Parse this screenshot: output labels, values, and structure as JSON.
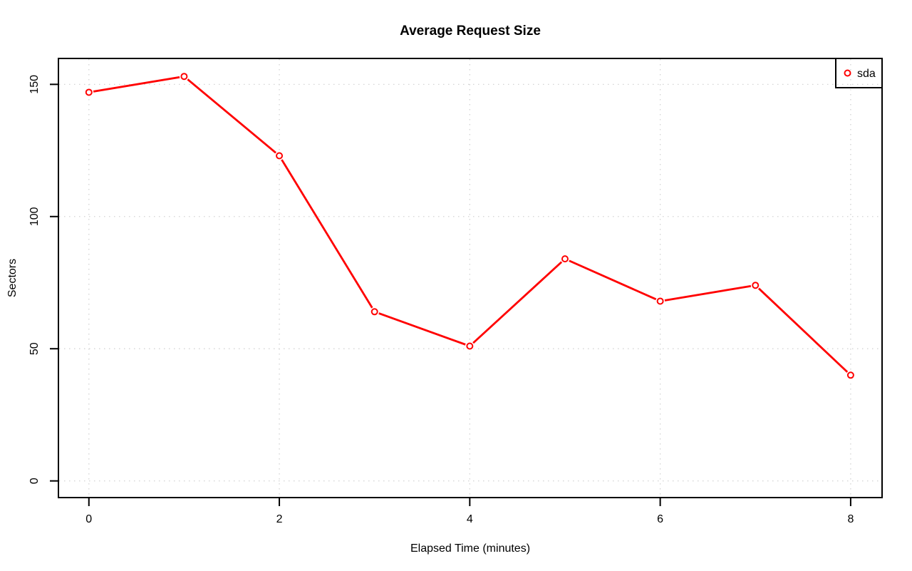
{
  "page": {
    "background_color": "#ffffff"
  },
  "chart_data": {
    "type": "line",
    "title": "Average Request Size",
    "xlabel": "Elapsed Time (minutes)",
    "ylabel": "Sectors",
    "x": [
      0,
      1,
      2,
      3,
      4,
      5,
      6,
      7,
      8
    ],
    "series": [
      {
        "name": "sda",
        "color": "#ff0000",
        "marker": "open-circle",
        "values": [
          147,
          153,
          123,
          64,
          51,
          84,
          68,
          74,
          40
        ]
      }
    ],
    "x_ticks": [
      0,
      2,
      4,
      6,
      8
    ],
    "y_ticks": [
      0,
      50,
      100,
      150
    ],
    "xlim": [
      -0.32,
      8.33
    ],
    "ylim": [
      -6.3,
      159.8
    ],
    "grid": true,
    "grid_style": "dotted",
    "grid_color": "#d3d3d3",
    "axis_color": "#000000",
    "background_color": "#ffffff",
    "legend": {
      "position": "topright",
      "entries": [
        {
          "label": "sda",
          "marker": "open-circle",
          "color": "#ff0000"
        }
      ]
    }
  }
}
